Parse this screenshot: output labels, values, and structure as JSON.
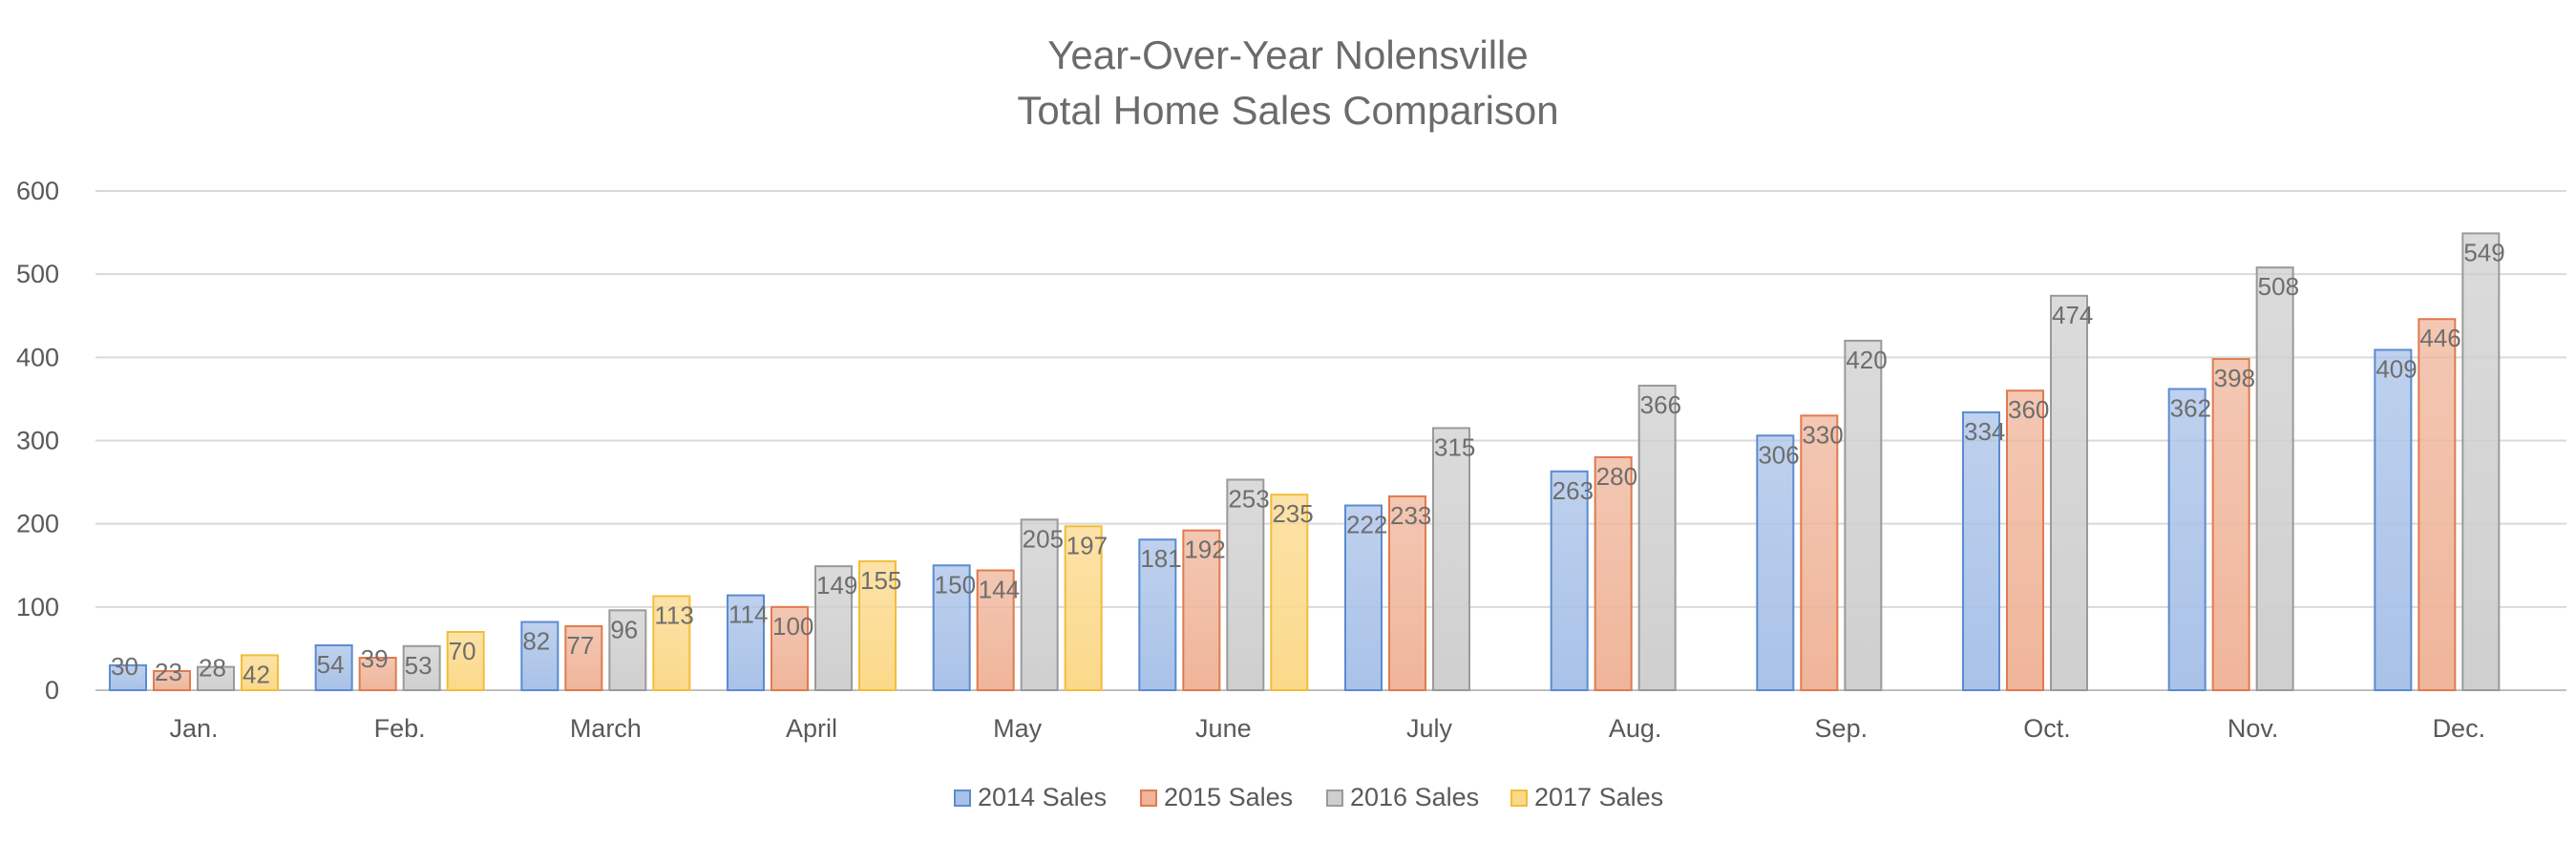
{
  "chart_data": {
    "type": "bar",
    "title": "Year-Over-Year Nolensville",
    "subtitle": "Total Home Sales Comparison",
    "xlabel": "",
    "ylabel": "",
    "ylim": [
      0,
      600
    ],
    "yticks": [
      0,
      100,
      200,
      300,
      400,
      500,
      600
    ],
    "grid": true,
    "legend_position": "bottom",
    "categories": [
      "Jan.",
      "Feb.",
      "March",
      "April",
      "May",
      "June",
      "July",
      "Aug.",
      "Sep.",
      "Oct.",
      "Nov.",
      "Dec."
    ],
    "series": [
      {
        "name": "2014 Sales",
        "color": "#a9c2e8",
        "stroke": "#5b8bd0",
        "values": [
          30,
          54,
          82,
          114,
          150,
          181,
          222,
          263,
          306,
          334,
          362,
          409
        ]
      },
      {
        "name": "2015 Sales",
        "color": "#efb59a",
        "stroke": "#e07b4e",
        "values": [
          23,
          39,
          77,
          100,
          144,
          192,
          233,
          280,
          330,
          360,
          398,
          446
        ]
      },
      {
        "name": "2016 Sales",
        "color": "#cfcfcf",
        "stroke": "#9a9a9a",
        "values": [
          28,
          53,
          96,
          149,
          205,
          253,
          315,
          366,
          420,
          474,
          508,
          549
        ]
      },
      {
        "name": "2017 Sales",
        "color": "#fbd98a",
        "stroke": "#f3bd3a",
        "values": [
          42,
          70,
          113,
          155,
          197,
          235,
          null,
          null,
          null,
          null,
          null,
          null
        ]
      }
    ]
  }
}
